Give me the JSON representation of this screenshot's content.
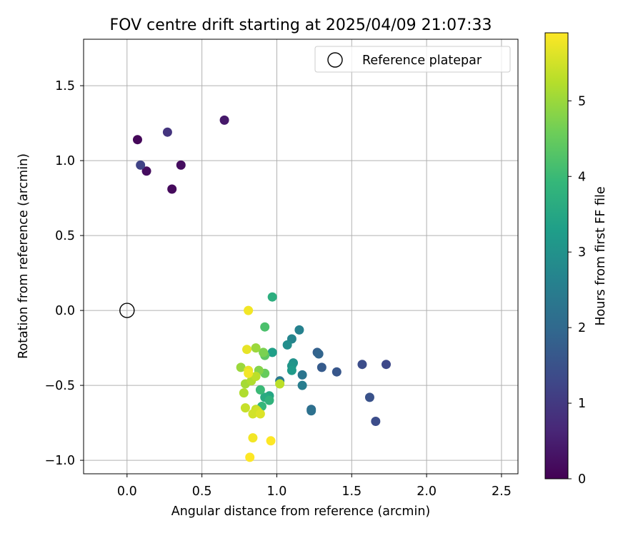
{
  "chart_data": {
    "type": "scatter",
    "title": "FOV centre drift starting at 2025/04/09 21:07:33",
    "xlabel": "Angular distance from reference (arcmin)",
    "ylabel": "Rotation from reference (arcmin)",
    "xlim": [
      -0.29,
      2.61
    ],
    "ylim": [
      -1.09,
      1.81
    ],
    "xticks": [
      0.0,
      0.5,
      1.0,
      1.5,
      2.0,
      2.5
    ],
    "xtick_labels": [
      "0.0",
      "0.5",
      "1.0",
      "1.5",
      "2.0",
      "2.5"
    ],
    "yticks": [
      -1.0,
      -0.5,
      0.0,
      0.5,
      1.0,
      1.5
    ],
    "ytick_labels": [
      "−1.0",
      "−0.5",
      "0.0",
      "0.5",
      "1.0",
      "1.5"
    ],
    "grid": true,
    "legend": {
      "position": "top-right",
      "entries": [
        {
          "label": "Reference platepar",
          "marker": "open-circle"
        }
      ]
    },
    "reference_point": {
      "x": 0.0,
      "y": 0.0
    },
    "colorbar": {
      "label": "Hours from first FF file",
      "colormap": "viridis",
      "range": [
        0,
        5.9
      ],
      "ticks": [
        0,
        1,
        2,
        3,
        4,
        5
      ],
      "tick_labels": [
        "0",
        "1",
        "2",
        "3",
        "4",
        "5"
      ],
      "colors": [
        "#440154",
        "#482878",
        "#3e4989",
        "#31688e",
        "#26828e",
        "#1f9e89",
        "#35b779",
        "#6ece58",
        "#b5de2b",
        "#fde725"
      ]
    },
    "points": [
      {
        "x": 0.07,
        "y": 1.14,
        "c": 0.1
      },
      {
        "x": 0.13,
        "y": 0.93,
        "c": 0.2
      },
      {
        "x": 0.3,
        "y": 0.81,
        "c": 0.15
      },
      {
        "x": 0.36,
        "y": 0.97,
        "c": 0.2
      },
      {
        "x": 0.65,
        "y": 1.27,
        "c": 0.4
      },
      {
        "x": 0.09,
        "y": 0.97,
        "c": 1.2
      },
      {
        "x": 0.27,
        "y": 1.19,
        "c": 0.9
      },
      {
        "x": 1.73,
        "y": -0.36,
        "c": 1.3
      },
      {
        "x": 1.57,
        "y": -0.36,
        "c": 1.4
      },
      {
        "x": 1.62,
        "y": -0.58,
        "c": 1.5
      },
      {
        "x": 1.66,
        "y": -0.74,
        "c": 1.4
      },
      {
        "x": 1.4,
        "y": -0.41,
        "c": 1.6
      },
      {
        "x": 1.3,
        "y": -0.38,
        "c": 1.7
      },
      {
        "x": 1.27,
        "y": -0.28,
        "c": 1.8
      },
      {
        "x": 1.28,
        "y": -0.29,
        "c": 1.9
      },
      {
        "x": 1.23,
        "y": -0.66,
        "c": 2.1
      },
      {
        "x": 1.23,
        "y": -0.67,
        "c": 2.2
      },
      {
        "x": 1.17,
        "y": -0.43,
        "c": 2.3
      },
      {
        "x": 1.17,
        "y": -0.5,
        "c": 2.5
      },
      {
        "x": 1.02,
        "y": -0.47,
        "c": 2.4
      },
      {
        "x": 1.15,
        "y": -0.13,
        "c": 2.6
      },
      {
        "x": 1.1,
        "y": -0.19,
        "c": 2.7
      },
      {
        "x": 1.07,
        "y": -0.23,
        "c": 2.9
      },
      {
        "x": 1.11,
        "y": -0.35,
        "c": 3.0
      },
      {
        "x": 1.1,
        "y": -0.37,
        "c": 3.1
      },
      {
        "x": 1.1,
        "y": -0.4,
        "c": 3.2
      },
      {
        "x": 0.97,
        "y": -0.28,
        "c": 3.3
      },
      {
        "x": 0.97,
        "y": 0.09,
        "c": 3.7
      },
      {
        "x": 0.95,
        "y": -0.57,
        "c": 3.5
      },
      {
        "x": 0.92,
        "y": -0.58,
        "c": 3.6
      },
      {
        "x": 0.95,
        "y": -0.6,
        "c": 3.8
      },
      {
        "x": 0.9,
        "y": -0.64,
        "c": 3.9
      },
      {
        "x": 0.89,
        "y": -0.53,
        "c": 4.0
      },
      {
        "x": 0.92,
        "y": -0.11,
        "c": 4.2
      },
      {
        "x": 0.92,
        "y": -0.3,
        "c": 4.4
      },
      {
        "x": 0.92,
        "y": -0.42,
        "c": 4.5
      },
      {
        "x": 0.91,
        "y": -0.28,
        "c": 4.7
      },
      {
        "x": 0.88,
        "y": -0.4,
        "c": 4.8
      },
      {
        "x": 0.86,
        "y": -0.25,
        "c": 5.0
      },
      {
        "x": 0.76,
        "y": -0.38,
        "c": 5.0
      },
      {
        "x": 0.79,
        "y": -0.49,
        "c": 5.1
      },
      {
        "x": 0.78,
        "y": -0.55,
        "c": 5.2
      },
      {
        "x": 0.83,
        "y": -0.47,
        "c": 5.2
      },
      {
        "x": 0.86,
        "y": -0.44,
        "c": 5.3
      },
      {
        "x": 1.02,
        "y": -0.49,
        "c": 5.3
      },
      {
        "x": 0.79,
        "y": -0.65,
        "c": 5.4
      },
      {
        "x": 0.86,
        "y": -0.66,
        "c": 5.4
      },
      {
        "x": 0.87,
        "y": -0.67,
        "c": 5.5
      },
      {
        "x": 0.84,
        "y": -0.69,
        "c": 5.5
      },
      {
        "x": 0.89,
        "y": -0.69,
        "c": 5.6
      },
      {
        "x": 0.81,
        "y": -0.4,
        "c": 5.7
      },
      {
        "x": 0.81,
        "y": -0.42,
        "c": 5.8
      },
      {
        "x": 0.8,
        "y": -0.26,
        "c": 5.7
      },
      {
        "x": 0.81,
        "y": 0.0,
        "c": 5.8
      },
      {
        "x": 0.84,
        "y": -0.85,
        "c": 5.8
      },
      {
        "x": 0.82,
        "y": -0.98,
        "c": 5.9
      },
      {
        "x": 0.96,
        "y": -0.87,
        "c": 5.9
      }
    ]
  }
}
